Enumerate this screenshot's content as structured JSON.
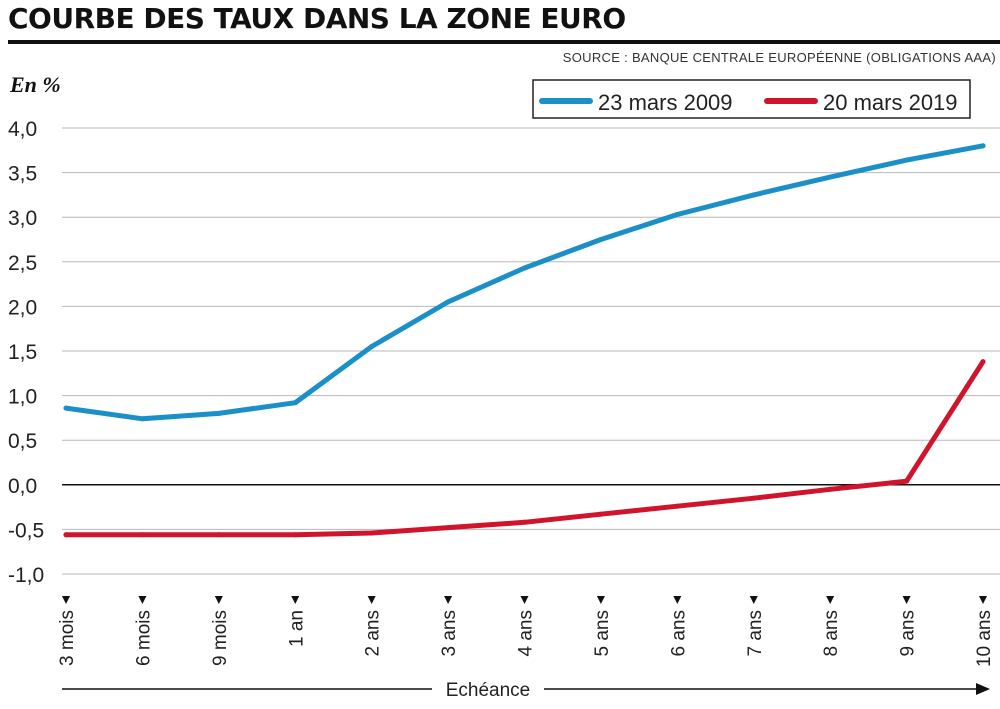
{
  "header": {
    "title": "COURBE DES TAUX DANS LA ZONE EURO",
    "source": "SOURCE : BANQUE CENTRALE EUROPÉENNE (OBLIGATIONS AAA)"
  },
  "chart_data": {
    "type": "line",
    "title": "COURBE DES TAUX DANS LA ZONE EURO",
    "ylabel": "En %",
    "xlabel": "Echéance",
    "ylim": [
      -1.0,
      4.0
    ],
    "yticks": [
      "4,0",
      "3,5",
      "3,0",
      "2,5",
      "2,0",
      "1,5",
      "1,0",
      "0,5",
      "0,0",
      "-0,5",
      "-1,0"
    ],
    "ytick_values": [
      4.0,
      3.5,
      3.0,
      2.5,
      2.0,
      1.5,
      1.0,
      0.5,
      0.0,
      -0.5,
      -1.0
    ],
    "categories": [
      "3 mois",
      "6 mois",
      "9 mois",
      "1 an",
      "2 ans",
      "3 ans",
      "4 ans",
      "5 ans",
      "6 ans",
      "7 ans",
      "8 ans",
      "9 ans",
      "10 ans"
    ],
    "series": [
      {
        "name": "23 mars 2009",
        "color": "#1b90c8",
        "values": [
          0.86,
          0.74,
          0.8,
          0.92,
          1.55,
          2.05,
          2.43,
          2.75,
          3.03,
          3.25,
          3.45,
          3.64,
          3.8
        ]
      },
      {
        "name": "20 mars 2019",
        "color": "#d0142c",
        "values": [
          -0.56,
          -0.56,
          -0.56,
          -0.56,
          -0.54,
          -0.48,
          -0.42,
          -0.33,
          -0.24,
          -0.15,
          -0.05,
          0.04,
          1.38
        ]
      }
    ],
    "legend": "top-right",
    "grid": true
  }
}
